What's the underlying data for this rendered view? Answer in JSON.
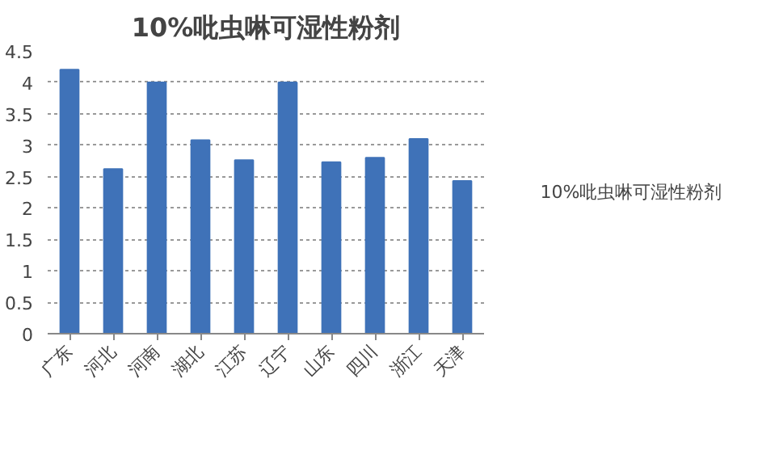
{
  "chart_data": {
    "type": "bar",
    "title": "10%吡虫啉可湿性粉剂",
    "categories": [
      "广东",
      "河北",
      "河南",
      "湖北",
      "江苏",
      "辽宁",
      "山东",
      "四川",
      "浙江",
      "天津"
    ],
    "series": [
      {
        "name": "10%吡虫啉可湿性粉剂",
        "color": "#3f72b8",
        "values": [
          4.2,
          2.62,
          4.0,
          3.08,
          2.76,
          4.0,
          2.73,
          2.8,
          3.1,
          2.43
        ]
      }
    ],
    "ylim": [
      0,
      4.5
    ],
    "yticks": [
      0,
      0.5,
      1,
      1.5,
      2,
      2.5,
      3,
      3.5,
      4,
      4.5
    ],
    "grid": "y",
    "legend": "right"
  }
}
